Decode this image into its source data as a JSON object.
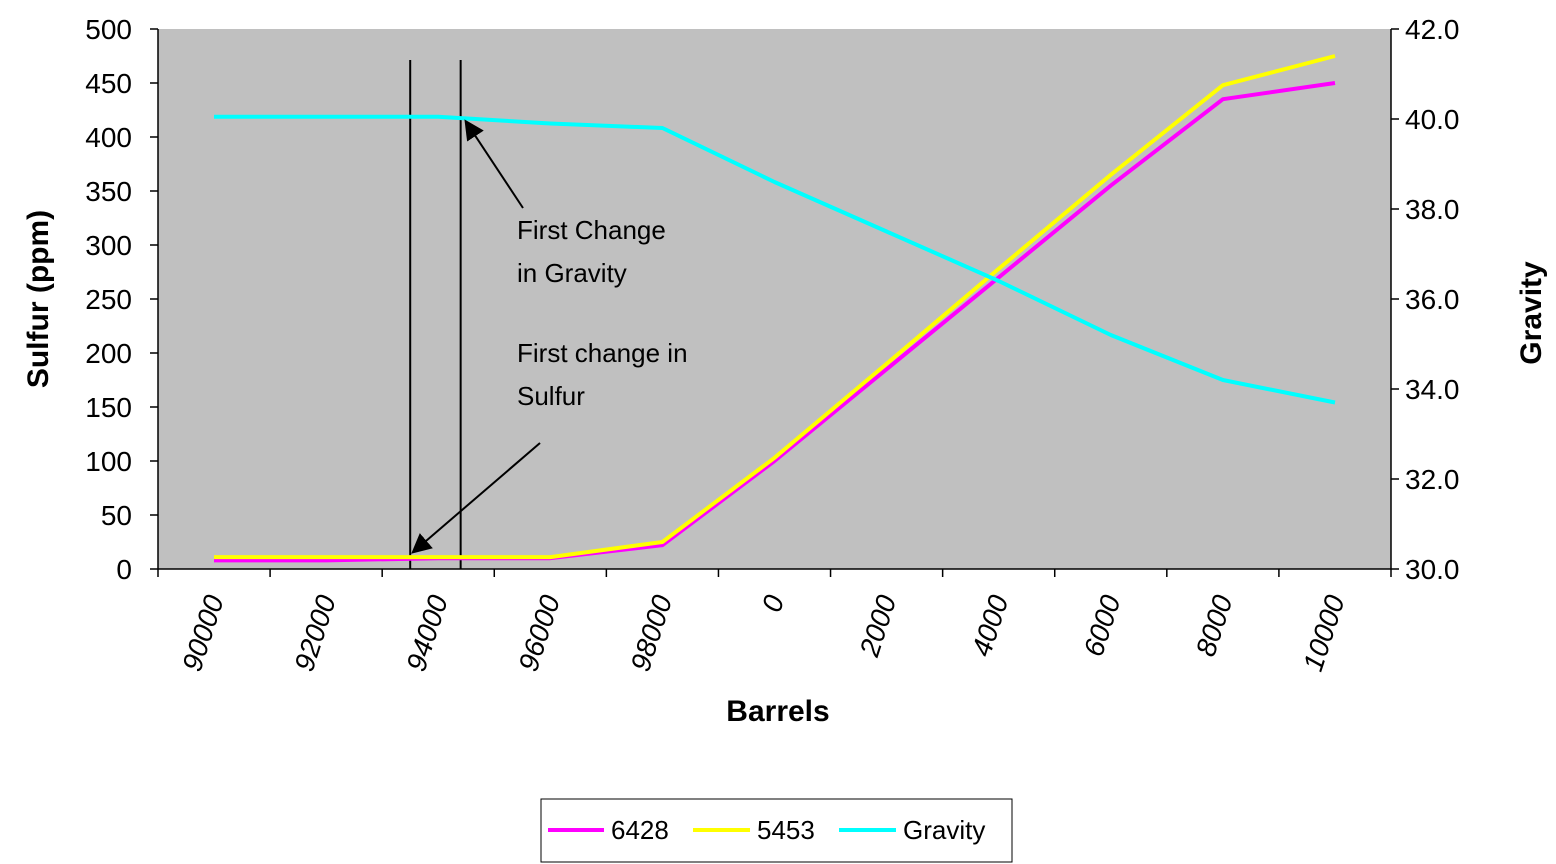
{
  "chart_data": {
    "type": "line",
    "title": "",
    "xlabel": "Barrels",
    "ylabel": "Sulfur (ppm)",
    "y2label": "Gravity",
    "categories": [
      "90000",
      "92000",
      "94000",
      "96000",
      "98000",
      "0",
      "2000",
      "4000",
      "6000",
      "8000",
      "10000"
    ],
    "y_ticks": [
      "0",
      "50",
      "100",
      "150",
      "200",
      "250",
      "300",
      "350",
      "400",
      "450",
      "500"
    ],
    "y2_ticks": [
      "30.0",
      "32.0",
      "34.0",
      "36.0",
      "38.0",
      "40.0",
      "42.0"
    ],
    "ylim": [
      0,
      500
    ],
    "y2lim": [
      30,
      42
    ],
    "plot_background": "#c0c0c0",
    "legend_position": "bottom",
    "series": [
      {
        "name": "6428",
        "color": "#ff00ff",
        "axis": "left",
        "x": [
          90000,
          92000,
          94000,
          96000,
          98000,
          100000,
          102000,
          104000,
          106000,
          108000,
          110000
        ],
        "values": [
          8,
          8,
          10,
          10,
          22,
          100,
          185,
          270,
          355,
          435,
          450
        ]
      },
      {
        "name": "5453",
        "color": "#ffff00",
        "axis": "left",
        "x": [
          90000,
          92000,
          94000,
          96000,
          98000,
          100000,
          102000,
          104000,
          106000,
          108000,
          110000
        ],
        "values": [
          11,
          11,
          11,
          11,
          25,
          103,
          190,
          278,
          365,
          448,
          475
        ]
      },
      {
        "name": "Gravity",
        "color": "#00ffff",
        "axis": "right",
        "x": [
          90000,
          92000,
          94000,
          96000,
          98000,
          100000,
          102000,
          104000,
          106000,
          108000,
          110000
        ],
        "values": [
          40.05,
          40.05,
          40.05,
          39.9,
          39.8,
          38.6,
          37.5,
          36.4,
          35.2,
          34.2,
          33.7
        ]
      }
    ],
    "reference_lines_x": [
      93500,
      94400
    ],
    "annotations": [
      {
        "lines": [
          "First Change",
          "in Gravity"
        ],
        "points_to": {
          "x": 94400,
          "axis": "right",
          "y": 40.05
        }
      },
      {
        "lines": [
          "First change in",
          "Sulfur"
        ],
        "points_to": {
          "x": 93500,
          "axis": "left",
          "y": 11
        }
      }
    ]
  }
}
